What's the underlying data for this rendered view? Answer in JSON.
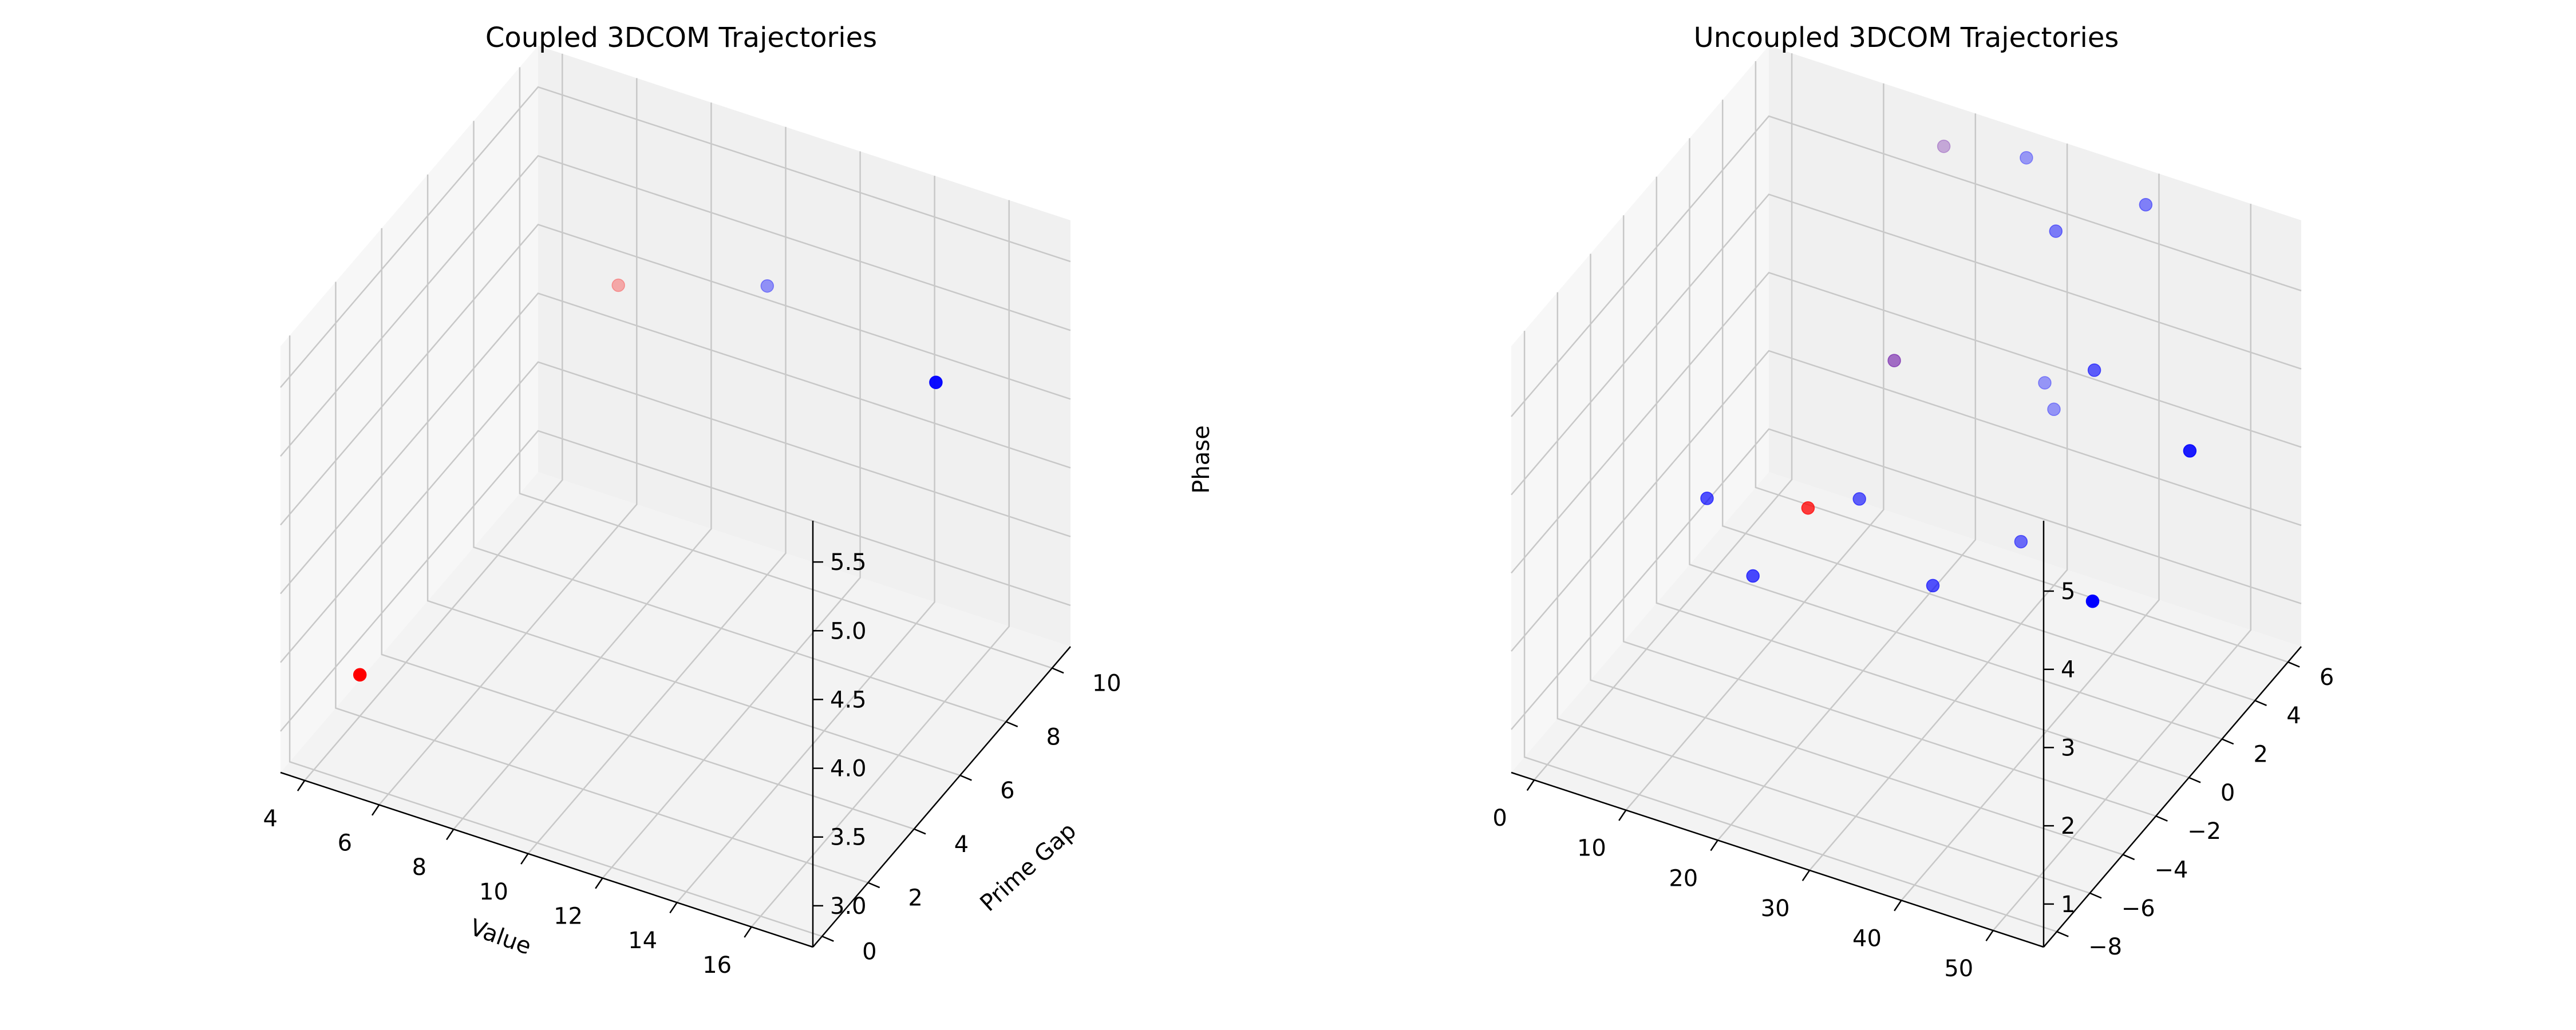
{
  "chart_data": [
    {
      "type": "scatter",
      "title": "Coupled 3DCOM Trajectories",
      "xlabel": "Value",
      "ylabel": "Prime Gap",
      "zlabel": "Phase",
      "xlim": [
        3.35,
        17.65
      ],
      "ylim": [
        -0.4,
        10.8
      ],
      "zlim": [
        2.7,
        5.8
      ],
      "xticks": [
        "4",
        "6",
        "8",
        "10",
        "12",
        "14",
        "16"
      ],
      "yticks": [
        "0",
        "2",
        "4",
        "6",
        "8",
        "10"
      ],
      "zticks": [
        "3.0",
        "3.5",
        "4.0",
        "4.5",
        "5.0",
        "5.5"
      ],
      "grid": true,
      "points": [
        {
          "x": 4,
          "y": 2,
          "z": 3.0,
          "color": "#ff0000"
        },
        {
          "x": 6,
          "y": 10,
          "z": 4.45,
          "color": "#ff0000"
        },
        {
          "x": 10,
          "y": 10,
          "z": 4.8,
          "color": "#0000ff"
        },
        {
          "x": 17,
          "y": 6,
          "z": 5.5,
          "color": "#0000ff"
        }
      ]
    },
    {
      "type": "scatter",
      "title": "Uncoupled 3DCOM Trajectories",
      "xlabel": "",
      "ylabel": "",
      "zlabel": "",
      "xlim": [
        -2.5,
        55.5
      ],
      "ylim": [
        -8.8,
        6.8
      ],
      "zlim": [
        0.45,
        5.9
      ],
      "xticks": [
        "0",
        "10",
        "20",
        "30",
        "40",
        "50"
      ],
      "yticks": [
        "−8",
        "−6",
        "−4",
        "−2",
        "0",
        "2",
        "4",
        "6"
      ],
      "zticks": [
        "1",
        "2",
        "3",
        "4",
        "5"
      ],
      "grid": true,
      "points": [
        {
          "x": 3,
          "y": 0,
          "z": 2.0,
          "color": "#0000ff"
        },
        {
          "x": 8,
          "y": 0,
          "z": 1.2,
          "color": "#0000ff"
        },
        {
          "x": 14,
          "y": 0,
          "z": 2.3,
          "color": "#ff0000"
        },
        {
          "x": 16,
          "y": 2,
          "z": 2.0,
          "color": "#0000ff"
        },
        {
          "x": 18,
          "y": 3,
          "z": 3.6,
          "color": "#6000a0"
        },
        {
          "x": 18,
          "y": 6,
          "z": 5.6,
          "color": "#6000a0"
        },
        {
          "x": 24,
          "y": 2,
          "z": 1.2,
          "color": "#0000ff"
        },
        {
          "x": 27,
          "y": 6,
          "z": 5.8,
          "color": "#0000ff"
        },
        {
          "x": 29,
          "y": 6,
          "z": 3.0,
          "color": "#0000ff"
        },
        {
          "x": 30,
          "y": 4,
          "z": 1.5,
          "color": "#0000ff"
        },
        {
          "x": 30,
          "y": 6,
          "z": 2.7,
          "color": "#0000ff"
        },
        {
          "x": 32,
          "y": 5,
          "z": 5.3,
          "color": "#0000ff"
        },
        {
          "x": 38,
          "y": 4,
          "z": 4.0,
          "color": "#0000ff"
        },
        {
          "x": 40,
          "y": 6,
          "z": 5.7,
          "color": "#0000ff"
        },
        {
          "x": 45,
          "y": 0,
          "z": 2.3,
          "color": "#0000ff"
        },
        {
          "x": 52,
          "y": 2,
          "z": 4.0,
          "color": "#0000ff"
        }
      ]
    }
  ]
}
